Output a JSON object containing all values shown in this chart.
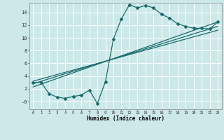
{
  "title": "",
  "xlabel": "Humidex (Indice chaleur)",
  "ylabel": "",
  "bg_color": "#cce8e8",
  "line_color": "#1a6b6b",
  "grid_color": "#ffffff",
  "ylim": [
    -1.2,
    15.5
  ],
  "xlim": [
    -0.5,
    23.5
  ],
  "yticks": [
    0,
    2,
    4,
    6,
    8,
    10,
    12,
    14
  ],
  "ytick_labels": [
    "-0",
    "2",
    "4",
    "6",
    "8",
    "10",
    "12",
    "14"
  ],
  "xticks": [
    0,
    1,
    2,
    3,
    4,
    5,
    6,
    7,
    8,
    9,
    10,
    11,
    12,
    13,
    14,
    15,
    16,
    17,
    18,
    19,
    20,
    21,
    22,
    23
  ],
  "curve1_x": [
    0,
    1,
    2,
    3,
    4,
    5,
    6,
    7,
    8,
    9,
    10,
    11,
    12,
    13,
    14,
    15,
    16,
    17,
    18,
    19,
    20,
    21,
    22,
    23
  ],
  "curve1_y": [
    3.0,
    3.0,
    1.2,
    0.7,
    0.5,
    0.8,
    1.0,
    1.8,
    -0.3,
    3.1,
    9.8,
    13.0,
    15.2,
    14.7,
    15.1,
    14.7,
    13.7,
    13.1,
    12.2,
    11.8,
    11.5,
    11.5,
    11.4,
    12.5
  ],
  "line2_x": [
    0,
    23
  ],
  "line2_y": [
    2.8,
    11.8
  ],
  "line3_x": [
    0,
    23
  ],
  "line3_y": [
    2.3,
    12.5
  ],
  "line4_x": [
    0,
    23
  ],
  "line4_y": [
    3.2,
    11.2
  ]
}
